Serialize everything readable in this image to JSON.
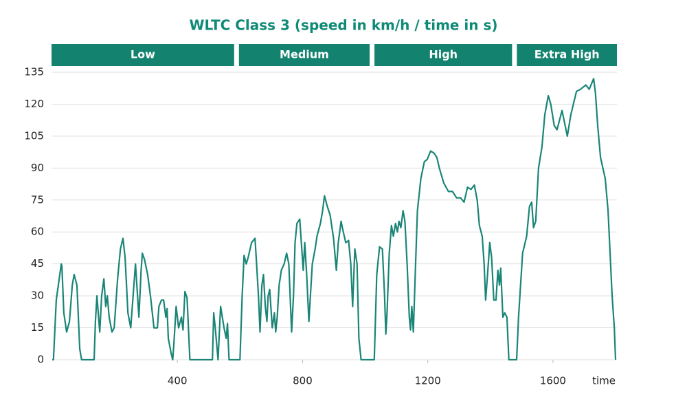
{
  "chart_data": {
    "type": "line",
    "title": "WLTC Class 3 (speed in km/h / time in s)",
    "x_label": "time",
    "phases": [
      {
        "name": "Low",
        "start": 0,
        "end": 589
      },
      {
        "name": "Medium",
        "start": 589,
        "end": 1022
      },
      {
        "name": "High",
        "start": 1022,
        "end": 1477
      },
      {
        "name": "Extra High",
        "start": 1477,
        "end": 1800
      }
    ],
    "phase_color": "#13836f",
    "color": "#1a8577",
    "xlim": [
      0,
      1800
    ],
    "xticks": [
      400,
      800,
      1200,
      1600
    ],
    "ylim": [
      0,
      135
    ],
    "yticks": [
      0,
      15,
      30,
      45,
      60,
      75,
      90,
      105,
      120,
      135
    ],
    "grid": true,
    "x": [
      0,
      4,
      13,
      29,
      31,
      37,
      46,
      55,
      64,
      70,
      79,
      88,
      94,
      134,
      138,
      143,
      152,
      158,
      165,
      171,
      176,
      182,
      191,
      198,
      209,
      218,
      226,
      233,
      242,
      251,
      266,
      277,
      284,
      288,
      295,
      305,
      314,
      325,
      336,
      341,
      349,
      356,
      363,
      367,
      371,
      380,
      385,
      389,
      396,
      404,
      413,
      418,
      424,
      431,
      440,
      512,
      516,
      521,
      530,
      538,
      549,
      556,
      560,
      565,
      600,
      607,
      613,
      620,
      626,
      637,
      648,
      653,
      659,
      664,
      670,
      675,
      681,
      686,
      690,
      695,
      703,
      710,
      714,
      719,
      725,
      732,
      741,
      749,
      756,
      765,
      771,
      776,
      782,
      791,
      802,
      807,
      813,
      820,
      831,
      840,
      846,
      857,
      864,
      870,
      879,
      888,
      899,
      908,
      914,
      923,
      930,
      938,
      947,
      954,
      960,
      967,
      974,
      980,
      987,
      1029,
      1037,
      1046,
      1055,
      1062,
      1066,
      1070,
      1077,
      1084,
      1090,
      1097,
      1103,
      1108,
      1114,
      1121,
      1127,
      1134,
      1141,
      1145,
      1149,
      1154,
      1160,
      1167,
      1178,
      1189,
      1198,
      1209,
      1220,
      1229,
      1237,
      1251,
      1266,
      1279,
      1292,
      1305,
      1316,
      1327,
      1338,
      1349,
      1358,
      1365,
      1374,
      1380,
      1385,
      1391,
      1398,
      1404,
      1411,
      1418,
      1424,
      1429,
      1433,
      1440,
      1446,
      1453,
      1459,
      1484,
      1490,
      1503,
      1516,
      1525,
      1532,
      1538,
      1545,
      1554,
      1565,
      1574,
      1585,
      1593,
      1604,
      1613,
      1629,
      1646,
      1657,
      1675,
      1688,
      1705,
      1716,
      1730,
      1736,
      1743,
      1752,
      1767,
      1776,
      1789,
      1796,
      1800
    ],
    "values": [
      0,
      0,
      28,
      45,
      44,
      22,
      13,
      18,
      35,
      40,
      35,
      5,
      0,
      0,
      18,
      30,
      13,
      30,
      38,
      25,
      30,
      20,
      13,
      15,
      38,
      52,
      57,
      48,
      22,
      15,
      45,
      20,
      42,
      50,
      47,
      40,
      30,
      15,
      15,
      25,
      28,
      28,
      20,
      24,
      10,
      3,
      0,
      8,
      25,
      15,
      20,
      14,
      32,
      29,
      0,
      0,
      22,
      15,
      0,
      25,
      15,
      10,
      17,
      0,
      0,
      30,
      49,
      45,
      48,
      55,
      57,
      45,
      30,
      13,
      35,
      40,
      25,
      18,
      30,
      33,
      15,
      22,
      13,
      20,
      35,
      42,
      45,
      50,
      45,
      13,
      30,
      55,
      64,
      66,
      42,
      55,
      40,
      18,
      45,
      52,
      58,
      64,
      70,
      77,
      72,
      68,
      57,
      42,
      55,
      65,
      60,
      55,
      56,
      45,
      25,
      52,
      45,
      10,
      0,
      0,
      40,
      53,
      52,
      30,
      12,
      22,
      50,
      63,
      58,
      64,
      60,
      65,
      62,
      70,
      65,
      45,
      20,
      14,
      25,
      13,
      40,
      70,
      85,
      93,
      94,
      98,
      97,
      95,
      90,
      83,
      79,
      79,
      76,
      76,
      74,
      81,
      80,
      82,
      75,
      63,
      58,
      45,
      28,
      40,
      55,
      48,
      28,
      28,
      42,
      35,
      43,
      20,
      22,
      20,
      0,
      0,
      20,
      50,
      58,
      72,
      74,
      62,
      65,
      90,
      100,
      115,
      124,
      120,
      110,
      108,
      117,
      105,
      115,
      126,
      127,
      129,
      127,
      132,
      125,
      110,
      95,
      85,
      70,
      30,
      15,
      0
    ]
  }
}
